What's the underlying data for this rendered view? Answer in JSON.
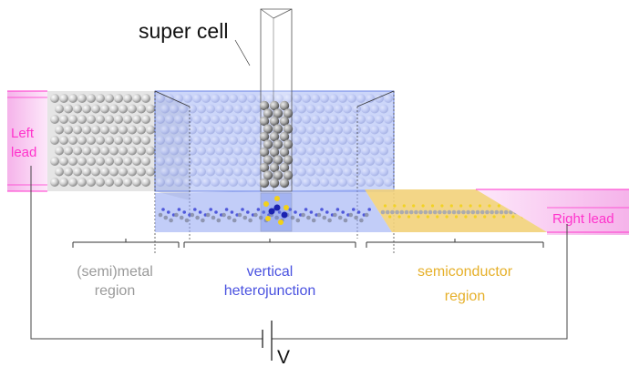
{
  "labels": {
    "super_cell": "super cell",
    "left_lead": [
      "Left",
      "lead"
    ],
    "right_lead": "Right lead",
    "semimetal_region": [
      "(semi)metal",
      "region"
    ],
    "vertical_heterojunction": [
      "vertical",
      "heterojunction"
    ],
    "semiconductor_region": [
      "semiconductor",
      "region"
    ],
    "voltage": "V"
  },
  "colors": {
    "lead": "#ff33cc",
    "lead_fill": "#f7bff0",
    "semimetal_text": "#9a9a9a",
    "heterojunction_text": "#4a52e0",
    "semiconductor_text": "#e6b02a",
    "overlay_blue": "#7b93f2",
    "semiconductor_fill": "#f2d27a",
    "semimetal_fill": "#d9d9d9",
    "blue_atoms": "#3b43d6",
    "yellow_atoms": "#f2d11a",
    "wire": "#444444"
  }
}
